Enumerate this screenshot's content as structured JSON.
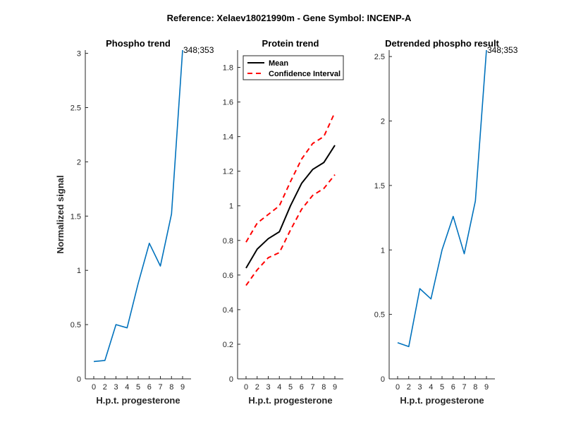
{
  "figure_title": "Reference:  Xelaev18021990m - Gene Symbol:  INCENP-A",
  "colors": {
    "series": "#0072BD",
    "mean": "#000000",
    "ci": "#FF0000",
    "axis": "#262626"
  },
  "chart_data": [
    {
      "type": "line",
      "title": "Phospho trend",
      "xlabel": "H.p.t. progesterone",
      "ylabel": "Normalized signal",
      "x_ticks": [
        0,
        2,
        3,
        4,
        5,
        6,
        7,
        8,
        9
      ],
      "y_ticks": [
        "0",
        "0.5",
        "1",
        "1.5",
        "2",
        "2.5",
        "3"
      ],
      "ylim": [
        0,
        3.03
      ],
      "series": [
        {
          "name": "348;353",
          "values": [
            0.16,
            0.17,
            0.5,
            0.47,
            0.88,
            1.25,
            1.04,
            1.52,
            3.03
          ]
        }
      ],
      "annotation": "348;353"
    },
    {
      "type": "line",
      "title": "Protein trend",
      "xlabel": "H.p.t. progesterone",
      "ylabel": "",
      "x_ticks": [
        0,
        2,
        3,
        4,
        5,
        6,
        7,
        8,
        9
      ],
      "y_ticks": [
        "0",
        "0.2",
        "0.4",
        "0.6",
        "0.8",
        "1",
        "1.2",
        "1.4",
        "1.6",
        "1.8"
      ],
      "ylim": [
        0,
        1.9
      ],
      "series": [
        {
          "name": "Mean",
          "style": "solid",
          "values": [
            0.64,
            0.75,
            0.81,
            0.85,
            1.0,
            1.13,
            1.21,
            1.25,
            1.35
          ]
        },
        {
          "name": "Confidence Interval",
          "style": "dashed",
          "values": [
            0.79,
            0.9,
            0.95,
            1.0,
            1.14,
            1.27,
            1.36,
            1.4,
            1.54
          ]
        },
        {
          "name": "Confidence Interval (lower)",
          "style": "dashed",
          "values": [
            0.54,
            0.63,
            0.7,
            0.73,
            0.86,
            0.98,
            1.06,
            1.1,
            1.18
          ]
        }
      ],
      "legend": [
        "Mean",
        "Confidence Interval"
      ]
    },
    {
      "type": "line",
      "title": "Detrended phospho result",
      "xlabel": "H.p.t. progesterone",
      "ylabel": "",
      "x_ticks": [
        0,
        2,
        3,
        4,
        5,
        6,
        7,
        8,
        9
      ],
      "y_ticks": [
        "0",
        "0.5",
        "1",
        "1.5",
        "2",
        "2.5"
      ],
      "ylim": [
        0,
        2.55
      ],
      "series": [
        {
          "name": "348;353",
          "values": [
            0.28,
            0.25,
            0.7,
            0.62,
            1.0,
            1.26,
            0.97,
            1.38,
            2.55
          ]
        }
      ],
      "annotation": "348;353"
    }
  ]
}
